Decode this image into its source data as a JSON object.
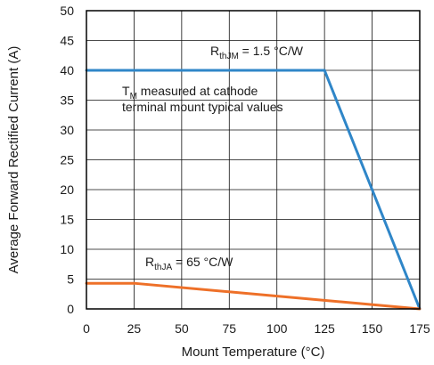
{
  "chart_data": {
    "type": "line",
    "xlabel": "Mount Temperature (°C)",
    "ylabel": "Average Forward Rectified Current (A)",
    "xlim": [
      0,
      175
    ],
    "ylim": [
      0,
      50
    ],
    "xticks": [
      0,
      25,
      50,
      75,
      100,
      125,
      150,
      175
    ],
    "yticks": [
      0,
      5,
      10,
      15,
      20,
      25,
      30,
      35,
      40,
      45,
      50
    ],
    "grid": true,
    "series": [
      {
        "name": "RthJM = 1.5 °C/W",
        "color": "#2f86c8",
        "x": [
          0,
          125,
          175
        ],
        "y": [
          40,
          40,
          0
        ]
      },
      {
        "name": "RthJA = 65 °C/W",
        "color": "#ee7028",
        "x": [
          0,
          25,
          175
        ],
        "y": [
          4.3,
          4.3,
          0
        ]
      }
    ],
    "annotations": {
      "rthjm": {
        "main": "R",
        "sub": "thJM",
        "rest": " = 1.5 °C/W"
      },
      "rthja": {
        "main": "R",
        "sub": "thJA",
        "rest": " = 65 °C/W"
      },
      "note_line1": {
        "main": "T",
        "sub": "M",
        "rest": " measured at cathode"
      },
      "note_line2": "terminal mount typical values"
    }
  }
}
